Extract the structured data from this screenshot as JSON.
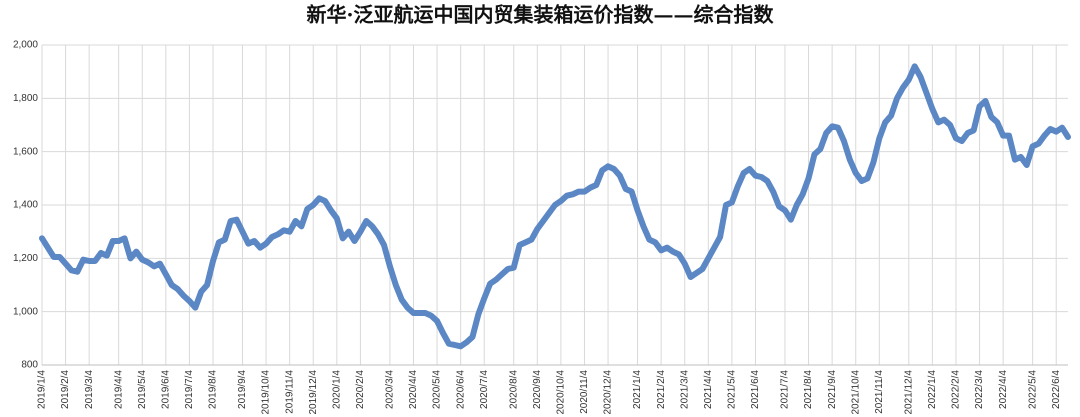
{
  "chart_data": {
    "type": "line",
    "title": "新华·泛亚航运中国内贸集装箱运价指数——综合指数",
    "categories": [
      "2019/1/4",
      null,
      null,
      null,
      "2019/2/4",
      null,
      null,
      null,
      "2019/3/4",
      null,
      null,
      null,
      null,
      "2019/4/4",
      null,
      null,
      null,
      "2019/5/4",
      null,
      null,
      null,
      "2019/6/4",
      null,
      null,
      null,
      "2019/7/4",
      null,
      null,
      null,
      "2019/8/4",
      null,
      null,
      null,
      null,
      "2019/9/4",
      null,
      null,
      null,
      "2019/10/4",
      null,
      null,
      null,
      "2019/11/4",
      null,
      null,
      null,
      "2019/12/4",
      null,
      null,
      null,
      "2020/1/4",
      null,
      null,
      null,
      "2020/2/4",
      null,
      null,
      null,
      null,
      "2020/3/4",
      null,
      null,
      null,
      "2020/4/4",
      null,
      null,
      null,
      "2020/5/4",
      null,
      null,
      null,
      "2020/6/4",
      null,
      null,
      null,
      "2020/7/4",
      null,
      null,
      null,
      null,
      "2020/8/4",
      null,
      null,
      null,
      "2020/9/4",
      null,
      null,
      null,
      "2020/10/4",
      null,
      null,
      null,
      "2020/11/4",
      null,
      null,
      null,
      "2020/12/4",
      null,
      null,
      null,
      null,
      "2021/1/4",
      null,
      null,
      null,
      "2021/2/4",
      null,
      null,
      null,
      "2021/3/4",
      null,
      null,
      null,
      "2021/4/4",
      null,
      null,
      null,
      "2021/5/4",
      null,
      null,
      null,
      "2021/6/4",
      null,
      null,
      null,
      null,
      "2021/7/4",
      null,
      null,
      null,
      "2021/8/4",
      null,
      null,
      null,
      "2021/9/4",
      null,
      null,
      null,
      "2021/10/4",
      null,
      null,
      null,
      "2021/11/4",
      null,
      null,
      null,
      null,
      "2021/12/4",
      null,
      null,
      null,
      "2022/1/4",
      null,
      null,
      null,
      "2022/2/4",
      null,
      null,
      null,
      "2022/3/4",
      null,
      null,
      null,
      "2022/4/4",
      null,
      null,
      null,
      null,
      "2022/5/4",
      null,
      null,
      null,
      "2022/6/4",
      null,
      null
    ],
    "series": [
      {
        "color": "#5b87c5",
        "values": [
          1275,
          1240,
          1205,
          1205,
          1180,
          1155,
          1150,
          1195,
          1190,
          1190,
          1220,
          1210,
          1265,
          1265,
          1275,
          1200,
          1225,
          1195,
          1185,
          1170,
          1180,
          1140,
          1100,
          1085,
          1060,
          1040,
          1015,
          1075,
          1100,
          1190,
          1260,
          1270,
          1340,
          1345,
          1300,
          1255,
          1265,
          1240,
          1255,
          1280,
          1290,
          1305,
          1300,
          1340,
          1320,
          1385,
          1400,
          1425,
          1415,
          1380,
          1350,
          1275,
          1300,
          1265,
          1300,
          1340,
          1320,
          1290,
          1250,
          1170,
          1100,
          1045,
          1015,
          995,
          995,
          995,
          985,
          965,
          920,
          880,
          875,
          870,
          885,
          905,
          990,
          1050,
          1105,
          1120,
          1140,
          1160,
          1165,
          1250,
          1260,
          1270,
          1310,
          1340,
          1370,
          1400,
          1415,
          1435,
          1440,
          1450,
          1450,
          1465,
          1475,
          1530,
          1545,
          1535,
          1510,
          1460,
          1450,
          1380,
          1320,
          1270,
          1260,
          1230,
          1240,
          1225,
          1215,
          1180,
          1130,
          1145,
          1160,
          1200,
          1240,
          1280,
          1400,
          1410,
          1470,
          1520,
          1535,
          1510,
          1505,
          1490,
          1450,
          1395,
          1380,
          1345,
          1400,
          1440,
          1500,
          1590,
          1610,
          1670,
          1695,
          1690,
          1640,
          1570,
          1520,
          1490,
          1500,
          1560,
          1650,
          1710,
          1735,
          1800,
          1840,
          1870,
          1920,
          1880,
          1820,
          1760,
          1710,
          1720,
          1700,
          1650,
          1640,
          1670,
          1680,
          1770,
          1790,
          1730,
          1710,
          1660,
          1660,
          1570,
          1580,
          1550,
          1620,
          1630,
          1660,
          1685,
          1675,
          1690,
          1655
        ]
      }
    ],
    "ylim": [
      800,
      2000
    ],
    "yticks": [
      800,
      {
        "value": 1000,
        "label": "1,000"
      },
      {
        "value": 1200,
        "label": "1,200"
      },
      {
        "value": 1400,
        "label": "1,400"
      },
      {
        "value": 1600,
        "label": "1,600"
      },
      {
        "value": 1800,
        "label": "1,800"
      },
      {
        "value": 2000,
        "label": "2,000"
      }
    ],
    "grid": true
  }
}
